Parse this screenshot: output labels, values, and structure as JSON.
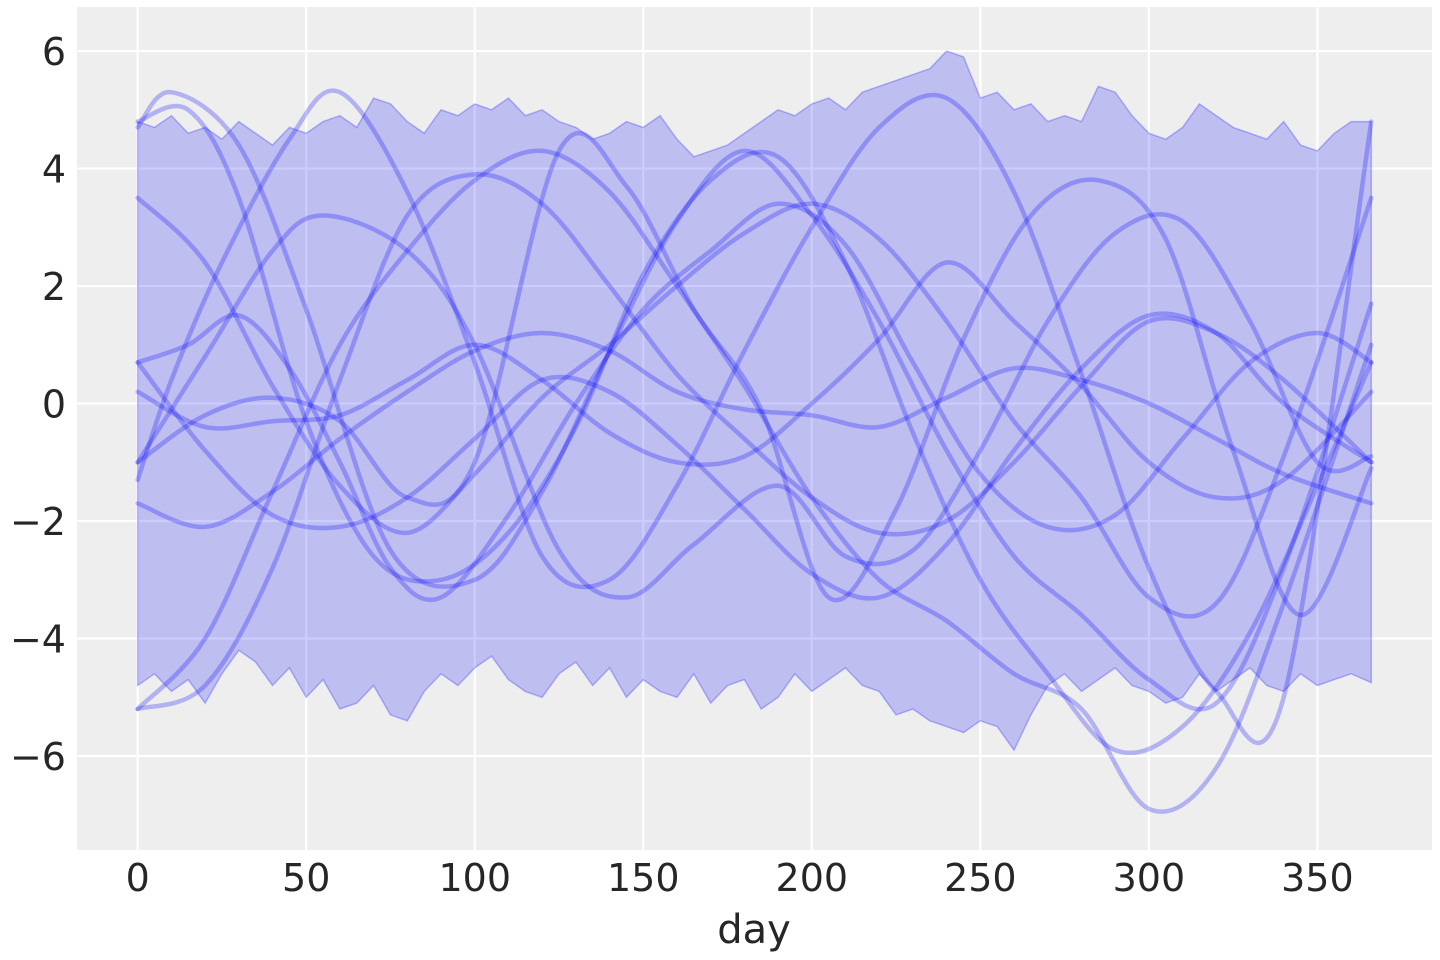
{
  "chart_data": {
    "type": "line",
    "title": "",
    "xlabel": "day",
    "ylabel": "",
    "xlim": [
      -18,
      384
    ],
    "ylim": [
      -7.6,
      6.75
    ],
    "xticks": [
      0,
      50,
      100,
      150,
      200,
      250,
      300,
      350
    ],
    "yticks": [
      -6,
      -4,
      -2,
      0,
      2,
      4,
      6
    ],
    "ytick_labels": [
      "−6",
      "−4",
      "−2",
      "0",
      "2",
      "4",
      "6"
    ],
    "grid": true,
    "background": "#eeeeee",
    "series_color": "#0000ff",
    "band": {
      "x": [
        0,
        5,
        10,
        15,
        20,
        25,
        30,
        35,
        40,
        45,
        50,
        55,
        60,
        65,
        70,
        75,
        80,
        85,
        90,
        95,
        100,
        105,
        110,
        115,
        120,
        125,
        130,
        135,
        140,
        145,
        150,
        155,
        160,
        165,
        170,
        175,
        180,
        185,
        190,
        195,
        200,
        205,
        210,
        215,
        220,
        225,
        230,
        235,
        240,
        245,
        250,
        255,
        260,
        265,
        270,
        275,
        280,
        285,
        290,
        295,
        300,
        305,
        310,
        315,
        320,
        325,
        330,
        335,
        340,
        345,
        350,
        355,
        360,
        366
      ],
      "upper": [
        4.8,
        4.7,
        4.9,
        4.6,
        4.7,
        4.5,
        4.8,
        4.6,
        4.4,
        4.7,
        4.6,
        4.8,
        4.9,
        4.7,
        5.2,
        5.1,
        4.8,
        4.6,
        5.0,
        4.9,
        5.1,
        5.0,
        5.2,
        4.9,
        5.0,
        4.8,
        4.7,
        4.5,
        4.6,
        4.8,
        4.7,
        4.9,
        4.5,
        4.2,
        4.3,
        4.4,
        4.6,
        4.8,
        5.0,
        4.9,
        5.1,
        5.2,
        5.0,
        5.3,
        5.4,
        5.5,
        5.6,
        5.7,
        6.0,
        5.9,
        5.2,
        5.3,
        5.0,
        5.1,
        4.8,
        4.9,
        4.8,
        5.4,
        5.3,
        4.9,
        4.6,
        4.5,
        4.7,
        5.1,
        4.9,
        4.7,
        4.6,
        4.5,
        4.8,
        4.4,
        4.3,
        4.6,
        4.8,
        4.8
      ],
      "lower": [
        -4.8,
        -4.6,
        -4.9,
        -4.7,
        -5.1,
        -4.6,
        -4.2,
        -4.4,
        -4.8,
        -4.5,
        -5.0,
        -4.7,
        -5.2,
        -5.1,
        -4.8,
        -5.3,
        -5.4,
        -4.9,
        -4.6,
        -4.8,
        -4.5,
        -4.3,
        -4.7,
        -4.9,
        -5.0,
        -4.6,
        -4.4,
        -4.8,
        -4.5,
        -5.0,
        -4.7,
        -4.9,
        -5.0,
        -4.6,
        -5.1,
        -4.8,
        -4.7,
        -5.2,
        -5.0,
        -4.6,
        -4.9,
        -4.7,
        -4.5,
        -4.8,
        -4.9,
        -5.3,
        -5.2,
        -5.4,
        -5.5,
        -5.6,
        -5.4,
        -5.5,
        -5.9,
        -5.3,
        -4.8,
        -4.6,
        -4.9,
        -4.7,
        -4.5,
        -4.8,
        -4.9,
        -5.1,
        -5.0,
        -4.6,
        -4.9,
        -4.7,
        -4.5,
        -4.8,
        -4.9,
        -4.6,
        -4.8,
        -4.7,
        -4.6,
        -4.75
      ]
    },
    "series": [
      {
        "x": [
          0,
          15,
          30,
          50,
          70,
          90,
          110,
          130,
          150,
          170,
          190,
          210,
          230,
          250,
          270,
          290,
          310,
          330,
          350,
          366
        ],
        "values": [
          4.8,
          5.0,
          3.5,
          -0.3,
          -2.6,
          -3.0,
          -2.2,
          -0.4,
          2.2,
          3.8,
          4.2,
          2.4,
          -0.5,
          -3.0,
          -4.6,
          -5.9,
          -5.5,
          -3.9,
          -1.4,
          0.7
        ]
      },
      {
        "x": [
          0,
          10,
          25,
          45,
          60,
          80,
          100,
          120,
          140,
          160,
          180,
          200,
          220,
          240,
          260,
          280,
          300,
          320,
          340,
          366
        ],
        "values": [
          -1.3,
          0.4,
          2.4,
          4.5,
          5.3,
          3.6,
          0.7,
          -2.6,
          -3.0,
          -1.4,
          0.9,
          3.0,
          4.7,
          5.2,
          3.6,
          0.5,
          -2.8,
          -4.9,
          -5.0,
          4.8
        ]
      },
      {
        "x": [
          0,
          10,
          30,
          50,
          75,
          100,
          120,
          140,
          160,
          180,
          200,
          220,
          240,
          260,
          280,
          300,
          320,
          340,
          366
        ],
        "values": [
          4.7,
          5.3,
          4.4,
          1.6,
          -2.5,
          -3.0,
          -1.5,
          0.9,
          3.1,
          4.3,
          3.2,
          1.4,
          -0.8,
          -2.6,
          -3.6,
          -4.7,
          -5.1,
          -2.8,
          1.7
        ]
      },
      {
        "x": [
          0,
          20,
          40,
          60,
          80,
          100,
          120,
          140,
          160,
          180,
          200,
          220,
          240,
          260,
          280,
          300,
          320,
          340,
          366
        ],
        "values": [
          3.5,
          2.4,
          0.3,
          -1.4,
          -2.2,
          -1.2,
          0.1,
          1.0,
          2.0,
          2.9,
          3.4,
          2.8,
          1.4,
          -0.3,
          -1.6,
          -3.3,
          -3.4,
          -0.9,
          3.5
        ]
      },
      {
        "x": [
          0,
          20,
          40,
          55,
          80,
          100,
          125,
          145,
          165,
          190,
          210,
          230,
          250,
          270,
          290,
          310,
          330,
          350,
          366
        ],
        "values": [
          -1.0,
          0.8,
          2.6,
          3.2,
          2.6,
          1.0,
          -2.5,
          -3.3,
          -2.4,
          -1.4,
          -2.6,
          -2.5,
          -0.8,
          1.4,
          2.9,
          3.1,
          1.4,
          -1.0,
          -0.9
        ]
      },
      {
        "x": [
          0,
          15,
          30,
          45,
          60,
          75,
          90,
          110,
          130,
          150,
          170,
          190,
          210,
          230,
          250,
          270,
          290,
          310,
          330,
          350,
          366
        ],
        "values": [
          0.7,
          1.0,
          1.5,
          0.6,
          -1.0,
          -2.8,
          -3.3,
          -1.9,
          0.0,
          1.6,
          2.6,
          3.4,
          2.7,
          0.7,
          -1.2,
          -2.1,
          -1.9,
          -0.6,
          0.7,
          1.2,
          0.7
        ]
      },
      {
        "x": [
          0,
          20,
          40,
          60,
          80,
          100,
          120,
          140,
          160,
          180,
          200,
          220,
          240,
          260,
          280,
          300,
          320,
          340,
          366
        ],
        "values": [
          0.2,
          -0.4,
          -0.3,
          -0.2,
          0.4,
          1.0,
          0.4,
          -0.5,
          -1.0,
          -0.9,
          0.0,
          1.1,
          2.4,
          1.4,
          0.3,
          -1.0,
          -1.6,
          -1.3,
          0.2
        ]
      },
      {
        "x": [
          0,
          20,
          40,
          60,
          80,
          100,
          120,
          140,
          160,
          180,
          200,
          220,
          240,
          260,
          280,
          300,
          320,
          340,
          366
        ],
        "values": [
          -1.7,
          -2.1,
          -1.5,
          -0.6,
          0.2,
          0.9,
          1.2,
          0.9,
          0.2,
          -0.1,
          -0.2,
          -0.4,
          0.1,
          0.6,
          0.4,
          0.0,
          -0.6,
          -1.2,
          -1.7
        ]
      },
      {
        "x": [
          0,
          20,
          40,
          60,
          80,
          100,
          120,
          140,
          160,
          180,
          200,
          220,
          240,
          260,
          280,
          300,
          320,
          340,
          366
        ],
        "values": [
          -5.2,
          -4.8,
          -2.8,
          0.4,
          3.2,
          3.9,
          3.4,
          2.0,
          0.5,
          -0.6,
          -1.6,
          -2.2,
          -2.0,
          -1.0,
          0.3,
          1.4,
          1.2,
          0.4,
          -1.0
        ]
      },
      {
        "x": [
          0,
          20,
          40,
          60,
          80,
          100,
          125,
          145,
          165,
          185,
          205,
          225,
          245,
          265,
          285,
          305,
          325,
          345,
          366
        ],
        "values": [
          -1.0,
          -0.2,
          0.1,
          -0.3,
          -1.6,
          -1.0,
          4.3,
          3.7,
          1.6,
          -0.1,
          -3.3,
          -1.8,
          1.1,
          3.2,
          3.8,
          2.8,
          -0.8,
          -3.6,
          -1.1
        ]
      },
      {
        "x": [
          0,
          20,
          40,
          60,
          80,
          100,
          120,
          140,
          160,
          180,
          200,
          220,
          240,
          260,
          280,
          300,
          320,
          340,
          366
        ],
        "values": [
          0.7,
          -0.8,
          -1.9,
          -2.1,
          -1.6,
          -0.6,
          0.4,
          0.2,
          -0.7,
          -1.8,
          -2.9,
          -3.3,
          -2.4,
          -0.8,
          0.6,
          1.5,
          1.2,
          0.0,
          -1.0
        ]
      },
      {
        "x": [
          0,
          20,
          40,
          60,
          80,
          100,
          120,
          140,
          160,
          180,
          200,
          220,
          240,
          260,
          280,
          300,
          320,
          340,
          366
        ],
        "values": [
          -5.2,
          -4.0,
          -1.5,
          1.0,
          2.6,
          3.8,
          4.3,
          3.6,
          2.0,
          0.3,
          -1.6,
          -3.0,
          -3.7,
          -4.6,
          -5.2,
          -6.9,
          -6.2,
          -3.4,
          1.0
        ]
      }
    ]
  }
}
